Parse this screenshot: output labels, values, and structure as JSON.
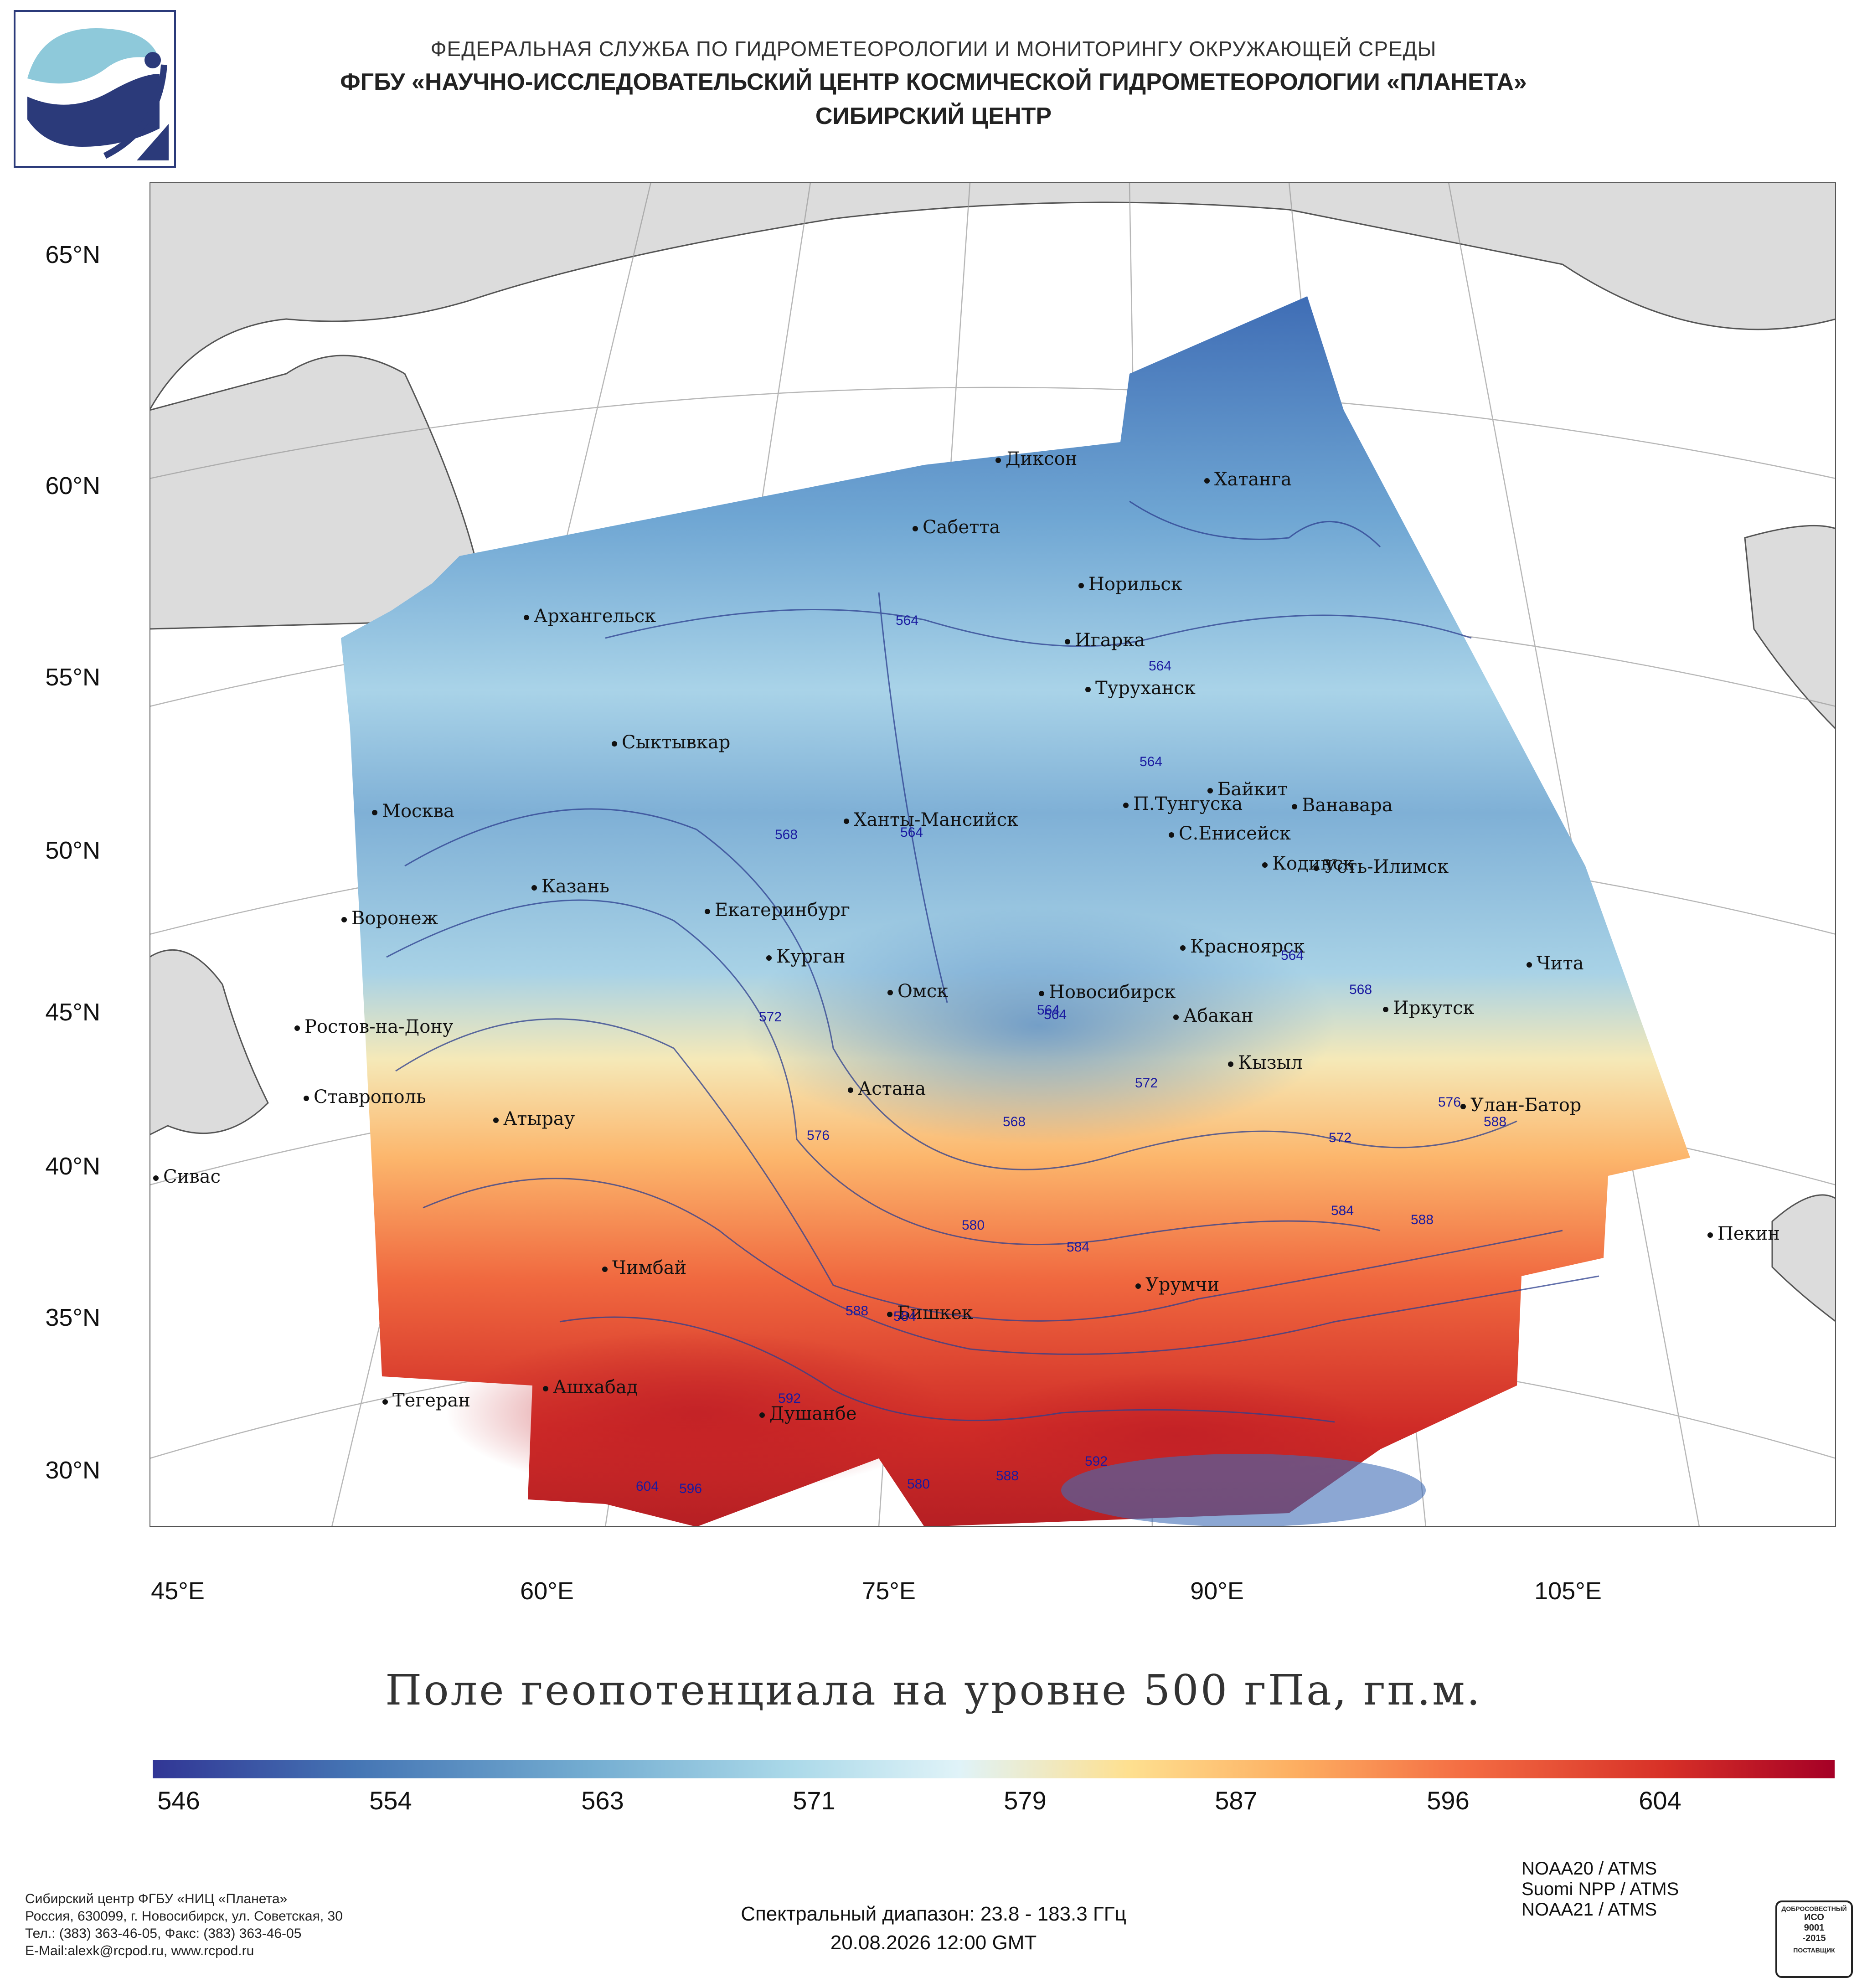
{
  "header": {
    "line1": "ФЕДЕРАЛЬНАЯ СЛУЖБА ПО ГИДРОМЕТЕОРОЛОГИИ И МОНИТОРИНГУ ОКРУЖАЮЩЕЙ СРЕДЫ",
    "line2": "ФГБУ «НАУЧНО-ИССЛЕДОВАТЕЛЬСКИЙ ЦЕНТР КОСМИЧЕСКОЙ ГИДРОМЕТЕОРОЛОГИИ «ПЛАНЕТА»",
    "line3": "СИБИРСКИЙ ЦЕНТР"
  },
  "map": {
    "lat_ticks": [
      "65°N",
      "60°N",
      "55°N",
      "50°N",
      "45°N",
      "40°N",
      "35°N",
      "30°N"
    ],
    "lon_ticks": [
      "45°E",
      "60°E",
      "75°E",
      "90°E",
      "105°E"
    ],
    "cities": [
      {
        "name": "Диксон"
      },
      {
        "name": "Хатанга"
      },
      {
        "name": "Сабетта"
      },
      {
        "name": "Архангельск"
      },
      {
        "name": "Норильск"
      },
      {
        "name": "Игарка"
      },
      {
        "name": "Туруханск"
      },
      {
        "name": "Сыктывкар"
      },
      {
        "name": "Байкит"
      },
      {
        "name": "Москва"
      },
      {
        "name": "П.Тунгуска"
      },
      {
        "name": "Ванавара"
      },
      {
        "name": "Ханты-Мансийск"
      },
      {
        "name": "С.Енисейск"
      },
      {
        "name": "Кодинск"
      },
      {
        "name": "Усть-Илимск"
      },
      {
        "name": "Казань"
      },
      {
        "name": "Екатеринбург"
      },
      {
        "name": "Воронеж"
      },
      {
        "name": "Красноярск"
      },
      {
        "name": "Курган"
      },
      {
        "name": "Чита"
      },
      {
        "name": "Омск"
      },
      {
        "name": "Новосибирск"
      },
      {
        "name": "Иркутск"
      },
      {
        "name": "Абакан"
      },
      {
        "name": "Ростов-на-Дону"
      },
      {
        "name": "Кызыл"
      },
      {
        "name": "Ставрополь"
      },
      {
        "name": "Астана"
      },
      {
        "name": "Улан-Батор"
      },
      {
        "name": "Атырау"
      },
      {
        "name": "Сивас"
      },
      {
        "name": "Пекин"
      },
      {
        "name": "Чимбай"
      },
      {
        "name": "Урумчи"
      },
      {
        "name": "Бишкек"
      },
      {
        "name": "Ашхабад"
      },
      {
        "name": "Тегеран"
      },
      {
        "name": "Душанбе"
      }
    ],
    "contour_labels": [
      "564",
      "564",
      "564",
      "568",
      "564",
      "564",
      "572",
      "564",
      "564",
      "568",
      "572",
      "568",
      "576",
      "572",
      "576",
      "588",
      "580",
      "584",
      "584",
      "588",
      "588",
      "584",
      "592",
      "604",
      "596",
      "588",
      "592",
      "580"
    ]
  },
  "title": "Поле геопотенциала на уровне 500 гПа, гп.м.",
  "colorbar": {
    "labels": [
      "546",
      "554",
      "563",
      "571",
      "579",
      "587",
      "596",
      "604"
    ],
    "colors": [
      "#313695",
      "#4575b4",
      "#74add1",
      "#abd9e9",
      "#e0f3f8",
      "#fee090",
      "#fdae61",
      "#f46d43",
      "#d73027",
      "#a50026"
    ]
  },
  "footer": {
    "org": "Сибирский центр ФГБУ «НИЦ «Планета»",
    "address": "Россия, 630099, г. Новосибирск, ул. Советская, 30",
    "phones": "Тел.: (383) 363-46-05, Факс: (383) 363-46-05",
    "email": "E-Mail:alexk@rcpod.ru, www.rcpod.ru",
    "spectral": "Спектральный диапазон: 23.8 - 183.3 ГГц",
    "datetime": "20.08.2026 12:00 GMT",
    "satellites": [
      "NOAA20 / ATMS",
      "Suomi NPP / ATMS",
      "NOAA21 / ATMS"
    ],
    "iso_text": [
      "ДОБРОСОВЕСТНЫЙ",
      "ИСО",
      "9001",
      "-2015",
      "ПОСТАВЩИК"
    ]
  }
}
